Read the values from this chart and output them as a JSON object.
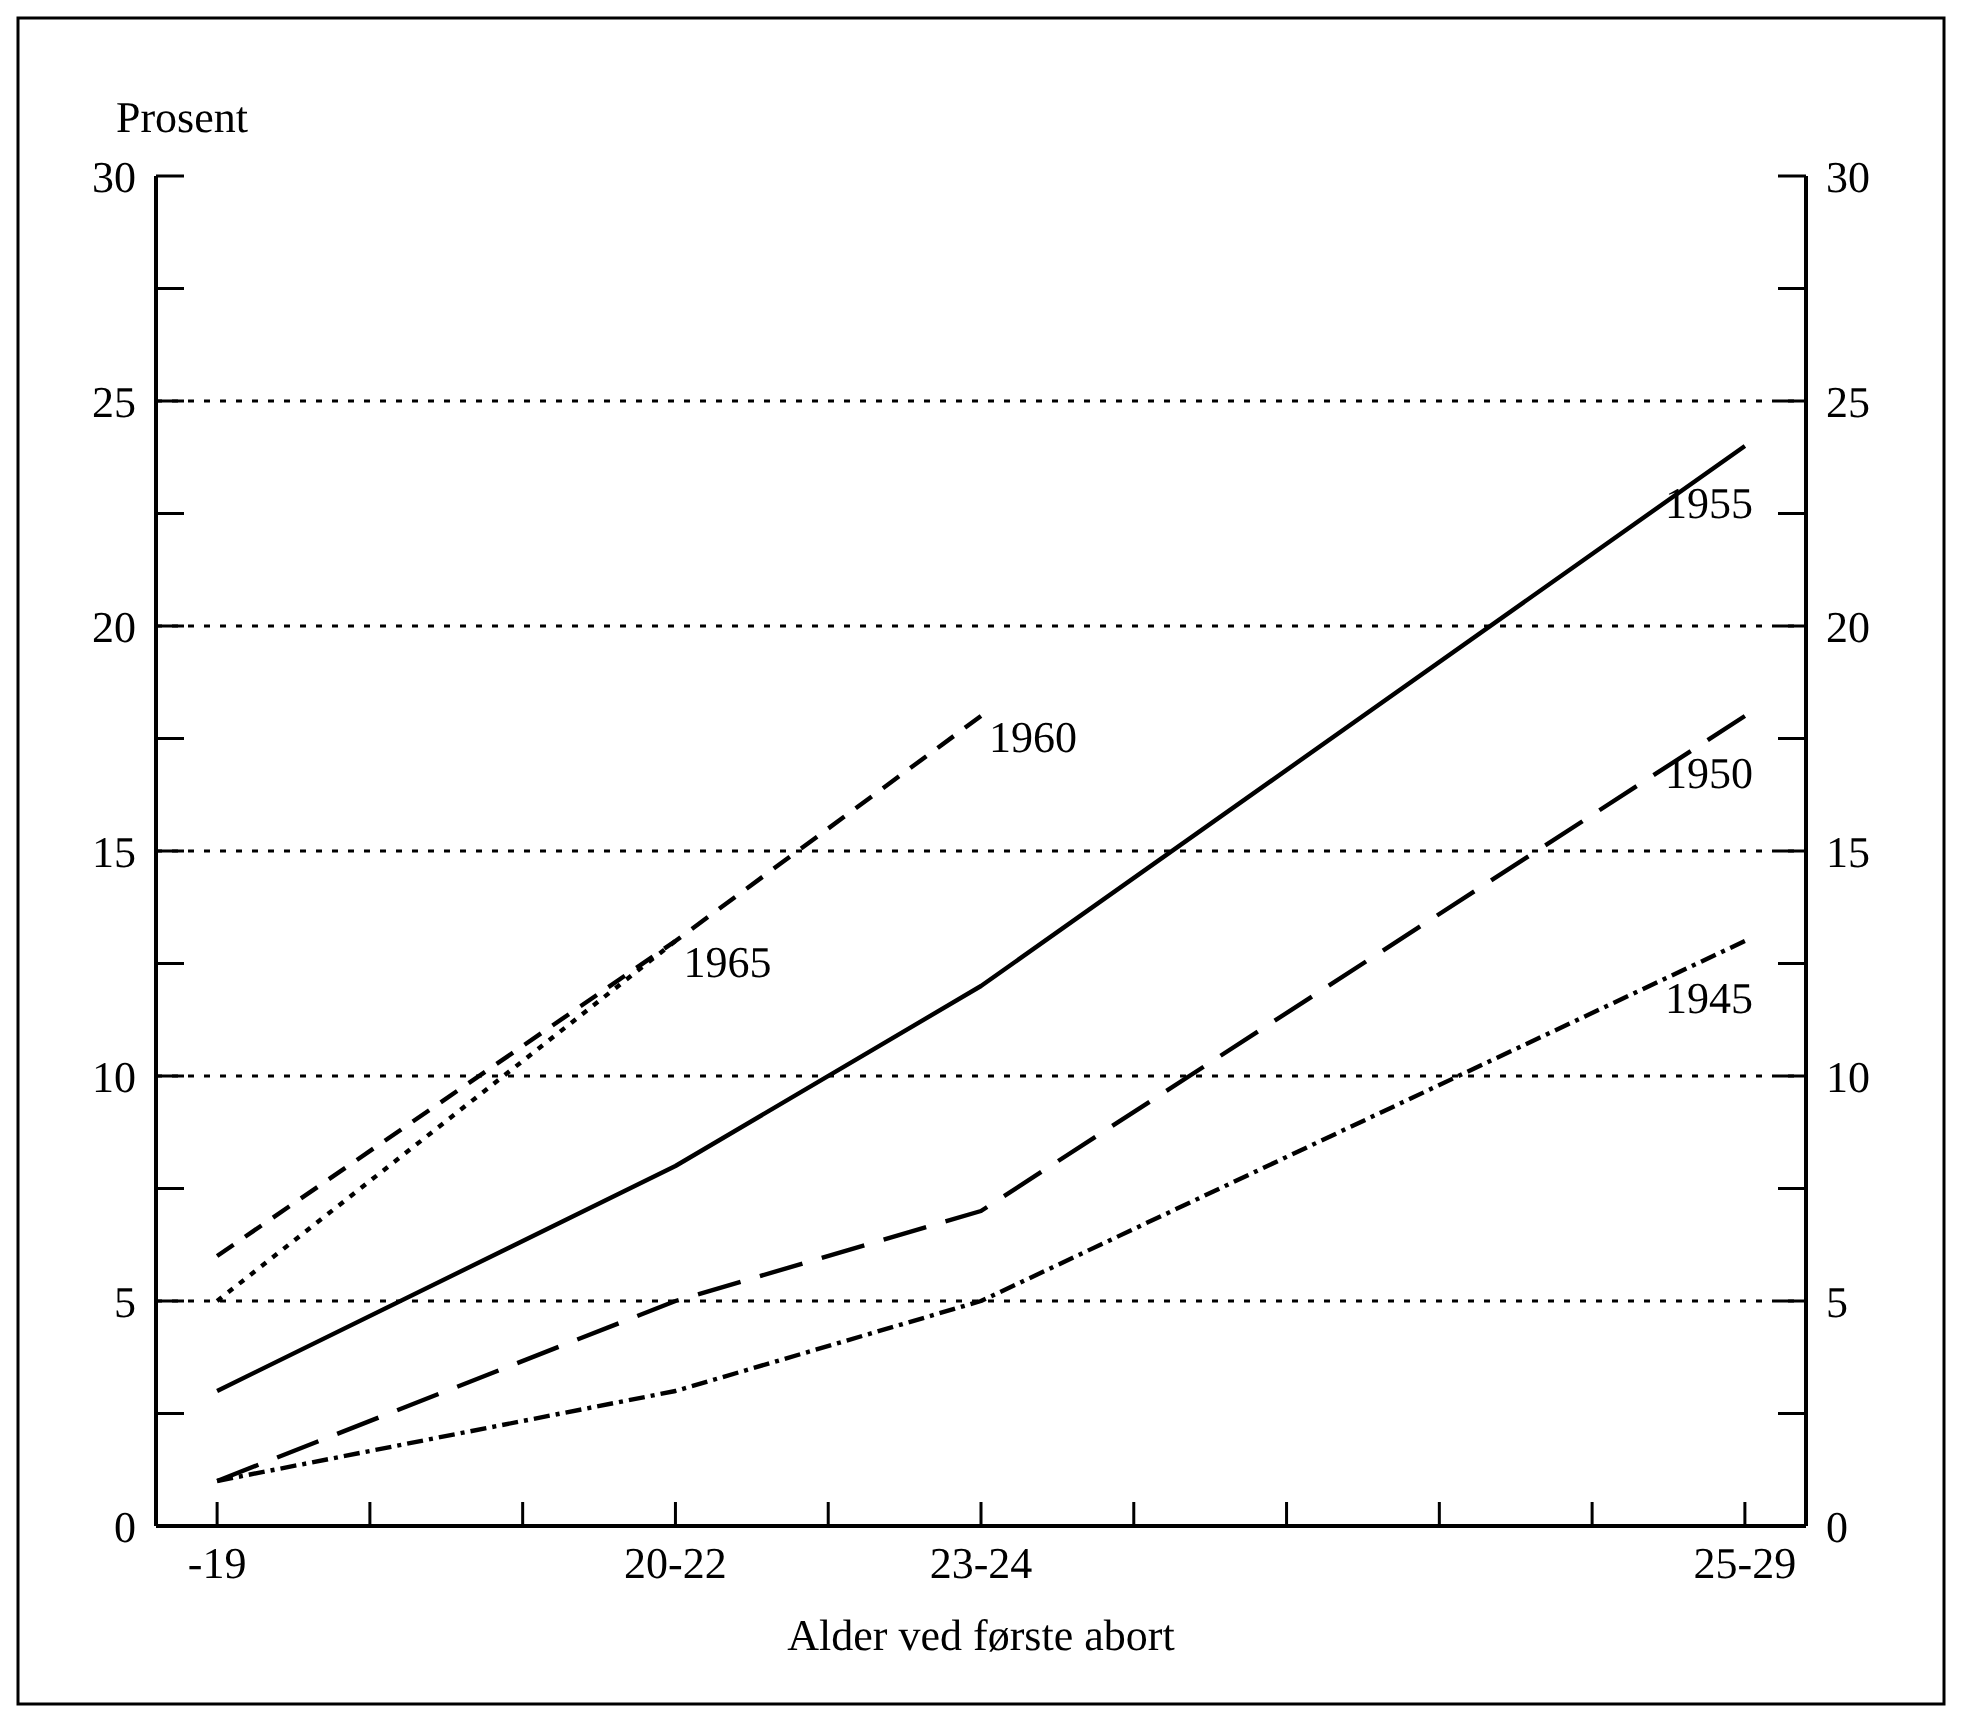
{
  "chart_data": {
    "type": "line",
    "xlabel": "Alder ved første abort",
    "ylabel": "Prosent",
    "categories": [
      "-19",
      null,
      null,
      "20-22",
      null,
      "23-24",
      null,
      null,
      null,
      null,
      "25-29"
    ],
    "ylim": [
      0,
      30
    ],
    "yticks": [
      0,
      {
        "value": 2.5,
        "label": null
      },
      5,
      {
        "value": 7.5,
        "label": null
      },
      10,
      {
        "value": 12.5,
        "label": null
      },
      15,
      {
        "value": 17.5,
        "label": null
      },
      20,
      {
        "value": 22.5,
        "label": null
      },
      25,
      {
        "value": 27.5,
        "label": null
      },
      30
    ],
    "y2lim": [
      0,
      30
    ],
    "y2ticks": [
      0,
      {
        "value": 2.5,
        "label": null
      },
      5,
      {
        "value": 7.5,
        "label": null
      },
      10,
      {
        "value": 12.5,
        "label": null
      },
      15,
      {
        "value": 17.5,
        "label": null
      },
      20,
      {
        "value": 22.5,
        "label": null
      },
      25,
      {
        "value": 27.5,
        "label": null
      },
      30
    ],
    "grid": "y",
    "marker": "none",
    "series": [
      {
        "name": "1955",
        "color": "#000000",
        "line_style": "solid",
        "values": [
          3,
          null,
          null,
          8,
          null,
          12,
          null,
          null,
          null,
          null,
          24
        ]
      },
      {
        "name": "1950",
        "color": "#000000",
        "line_style": "dashed",
        "values": [
          1,
          null,
          null,
          5,
          null,
          7,
          null,
          null,
          null,
          null,
          18
        ]
      },
      {
        "name": "1945",
        "color": "#000000",
        "line_style": "dashdot",
        "values": [
          1,
          null,
          null,
          3,
          null,
          5,
          null,
          null,
          null,
          null,
          13
        ]
      },
      {
        "name": "1960",
        "color": "#000000",
        "line_style": "shortdash",
        "values": [
          6,
          null,
          null,
          13,
          null,
          18,
          null,
          null,
          null,
          null,
          null
        ]
      },
      {
        "name": "1965",
        "color": "#000000",
        "line_style": "dotted",
        "values": [
          5,
          null,
          null,
          13,
          null,
          null,
          null,
          null,
          null,
          null,
          null
        ]
      }
    ]
  }
}
